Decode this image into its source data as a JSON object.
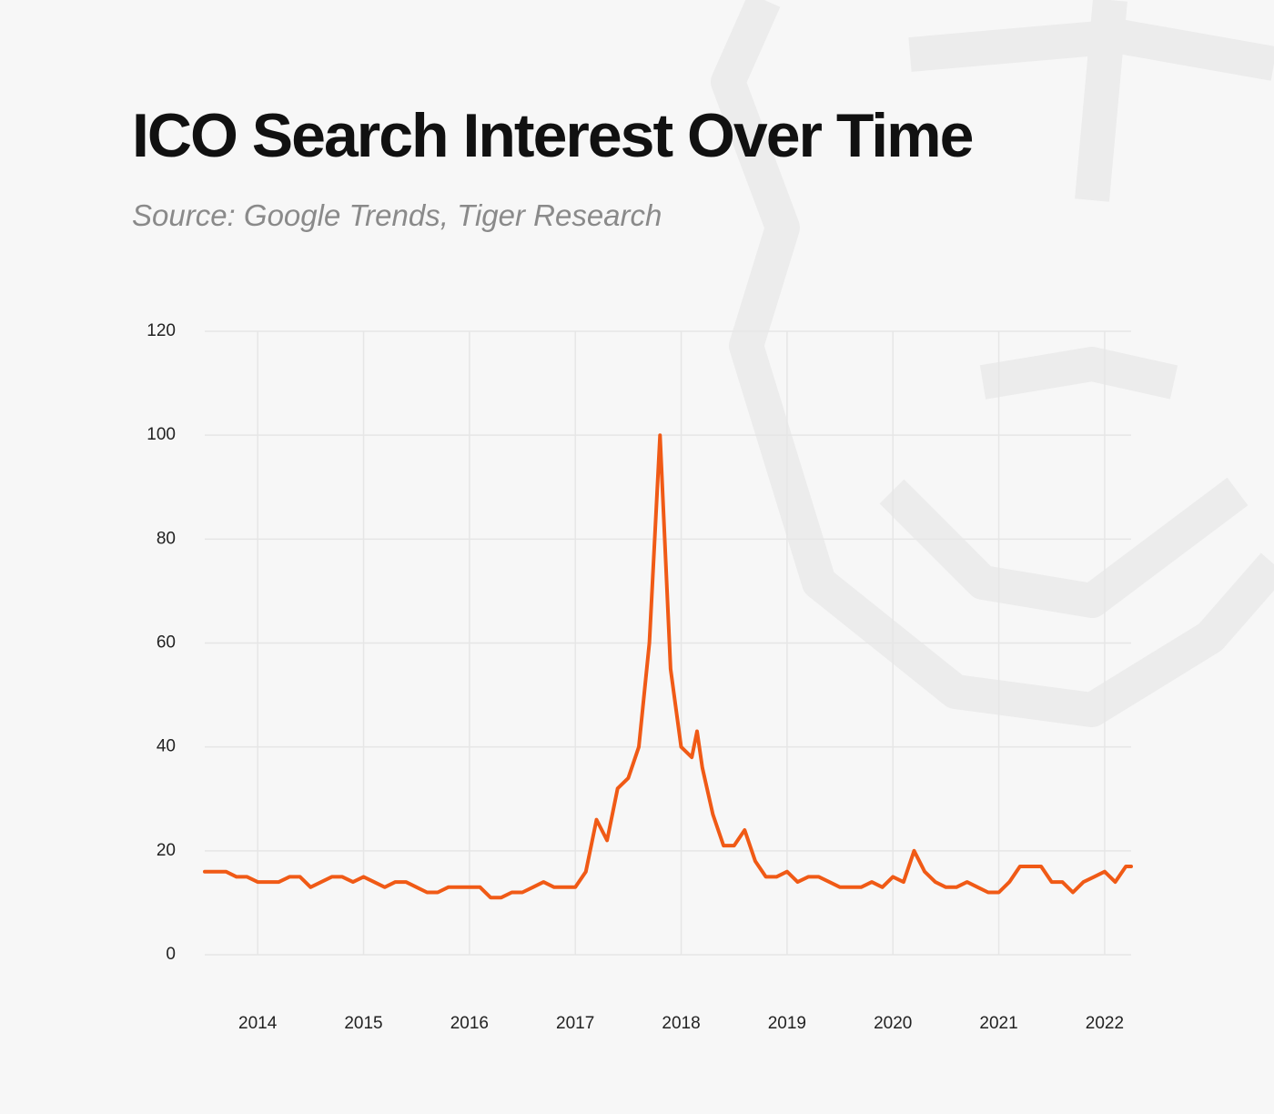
{
  "chart_data": {
    "type": "line",
    "title": "ICO Search Interest Over Time",
    "subtitle": "Source: Google Trends, Tiger Research",
    "x": [
      2013.5,
      2013.6,
      2013.7,
      2013.8,
      2013.9,
      2014.0,
      2014.1,
      2014.2,
      2014.3,
      2014.4,
      2014.5,
      2014.6,
      2014.7,
      2014.8,
      2014.9,
      2015.0,
      2015.1,
      2015.2,
      2015.3,
      2015.4,
      2015.5,
      2015.6,
      2015.7,
      2015.8,
      2015.9,
      2016.0,
      2016.1,
      2016.2,
      2016.3,
      2016.4,
      2016.5,
      2016.6,
      2016.7,
      2016.8,
      2016.9,
      2017.0,
      2017.1,
      2017.2,
      2017.3,
      2017.4,
      2017.5,
      2017.6,
      2017.7,
      2017.8,
      2017.9,
      2018.0,
      2018.1,
      2018.15,
      2018.2,
      2018.3,
      2018.4,
      2018.5,
      2018.6,
      2018.7,
      2018.8,
      2018.9,
      2019.0,
      2019.1,
      2019.2,
      2019.3,
      2019.4,
      2019.5,
      2019.6,
      2019.7,
      2019.8,
      2019.9,
      2020.0,
      2020.1,
      2020.2,
      2020.3,
      2020.4,
      2020.5,
      2020.6,
      2020.7,
      2020.8,
      2020.9,
      2021.0,
      2021.1,
      2021.2,
      2021.3,
      2021.4,
      2021.5,
      2021.6,
      2021.7,
      2021.8,
      2021.9,
      2022.0,
      2022.1,
      2022.2,
      2022.25
    ],
    "series": [
      {
        "name": "ICO",
        "color": "#f05a16",
        "values": [
          16,
          16,
          16,
          15,
          15,
          14,
          14,
          14,
          15,
          15,
          13,
          14,
          15,
          15,
          14,
          15,
          14,
          13,
          14,
          14,
          13,
          12,
          12,
          13,
          13,
          13,
          13,
          11,
          11,
          12,
          12,
          13,
          14,
          13,
          13,
          13,
          16,
          26,
          22,
          32,
          34,
          40,
          60,
          100,
          55,
          40,
          38,
          43,
          36,
          27,
          21,
          21,
          24,
          18,
          15,
          15,
          16,
          14,
          15,
          15,
          14,
          13,
          13,
          13,
          14,
          13,
          15,
          14,
          20,
          16,
          14,
          13,
          13,
          14,
          13,
          12,
          12,
          14,
          17,
          17,
          17,
          14,
          14,
          12,
          14,
          15,
          16,
          14,
          17,
          17
        ]
      }
    ],
    "xlim": [
      2013.5,
      2022.25
    ],
    "xticks": [
      2014,
      2015,
      2016,
      2017,
      2018,
      2019,
      2020,
      2021,
      2022
    ],
    "ylim": [
      0,
      120
    ],
    "yticks": [
      0,
      20,
      40,
      60,
      80,
      100,
      120
    ],
    "grid": true
  }
}
